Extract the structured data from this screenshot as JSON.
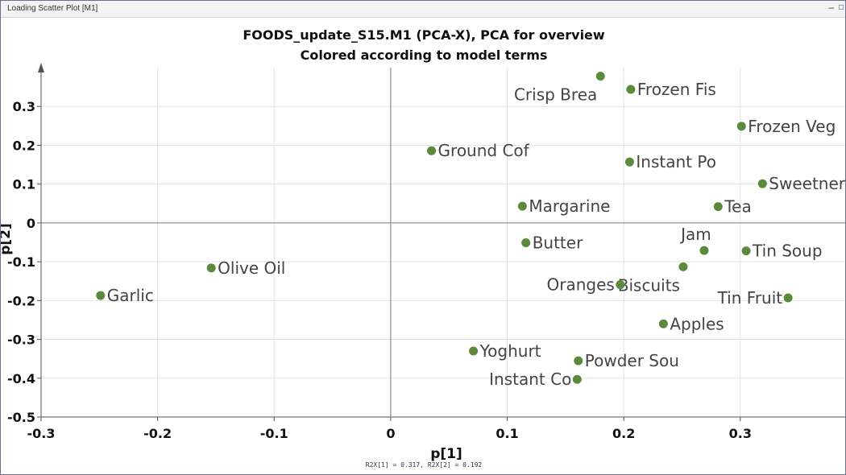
{
  "window": {
    "title": "Loading Scatter Plot [M1]",
    "minimize_glyph": "–",
    "maximize_glyph": "□"
  },
  "colors": {
    "point": "#5b8a3c",
    "grid": "#e3e3e3",
    "axis": "#555555",
    "text": "#111111"
  },
  "chart_data": {
    "type": "scatter",
    "title": "FOODS_update_S15.M1 (PCA-X), PCA for overview",
    "subtitle": "Colored according to model terms",
    "xlabel": "p[1]",
    "ylabel": "p[2]",
    "xlim": [
      -0.3,
      0.39
    ],
    "ylim": [
      -0.5,
      0.4
    ],
    "xticks": [
      -0.3,
      -0.2,
      -0.1,
      0,
      0.1,
      0.2,
      0.3
    ],
    "xtick_labels": [
      "-0.3",
      "-0.2",
      "-0.1",
      "0",
      "0.1",
      "0.2",
      "0.3"
    ],
    "yticks": [
      0.3,
      0.2,
      0.1,
      0,
      -0.1,
      -0.2,
      -0.3,
      -0.4,
      -0.5
    ],
    "ytick_labels": [
      "0.3",
      "0.2",
      "0.1",
      "0",
      "-0.1",
      "-0.2",
      "-0.3",
      "-0.4",
      "-0.5"
    ],
    "grid": true,
    "footnote": "R2X[1] = 0.317, R2X[2] = 0.192",
    "points": [
      {
        "label": "Crisp Brea",
        "x": 0.18,
        "y": 0.378,
        "side": "below-left"
      },
      {
        "label": "Frozen Fis",
        "x": 0.206,
        "y": 0.344,
        "side": "right"
      },
      {
        "label": "Frozen Veg",
        "x": 0.301,
        "y": 0.249,
        "side": "right"
      },
      {
        "label": "Ground Cof",
        "x": 0.035,
        "y": 0.186,
        "side": "right"
      },
      {
        "label": "Instant Po",
        "x": 0.205,
        "y": 0.157,
        "side": "right"
      },
      {
        "label": "Sweetner",
        "x": 0.319,
        "y": 0.101,
        "side": "right"
      },
      {
        "label": "Margarine",
        "x": 0.113,
        "y": 0.043,
        "side": "right"
      },
      {
        "label": "Tea",
        "x": 0.281,
        "y": 0.042,
        "side": "right"
      },
      {
        "label": "Jam",
        "x": 0.269,
        "y": -0.071,
        "side": "above-left"
      },
      {
        "label": "Tin Soup",
        "x": 0.305,
        "y": -0.072,
        "side": "right"
      },
      {
        "label": "Butter",
        "x": 0.116,
        "y": -0.051,
        "side": "right"
      },
      {
        "label": "Biscuits",
        "x": 0.251,
        "y": -0.113,
        "side": "below-left"
      },
      {
        "label": "Olive Oil",
        "x": -0.154,
        "y": -0.116,
        "side": "right"
      },
      {
        "label": "Oranges",
        "x": 0.197,
        "y": -0.159,
        "side": "left"
      },
      {
        "label": "Garlic",
        "x": -0.249,
        "y": -0.187,
        "side": "right"
      },
      {
        "label": "Tin Fruit",
        "x": 0.341,
        "y": -0.193,
        "side": "left"
      },
      {
        "label": "Apples",
        "x": 0.234,
        "y": -0.26,
        "side": "right"
      },
      {
        "label": "Yoghurt",
        "x": 0.071,
        "y": -0.33,
        "side": "right"
      },
      {
        "label": "Powder Sou",
        "x": 0.161,
        "y": -0.355,
        "side": "right"
      },
      {
        "label": "Instant Co",
        "x": 0.16,
        "y": -0.403,
        "side": "left"
      }
    ]
  }
}
